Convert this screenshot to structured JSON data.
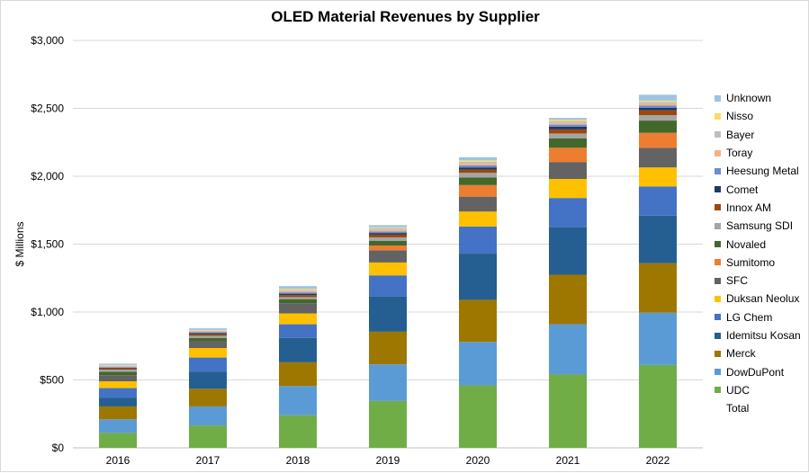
{
  "chart_data": {
    "type": "bar",
    "stacked": true,
    "title": "OLED Material Revenues by Supplier",
    "xlabel": "",
    "ylabel": "$ Millions",
    "ylim": [
      0,
      3000
    ],
    "y_ticks": [
      "$0",
      "$500",
      "$1,000",
      "$1,500",
      "$2,000",
      "$2,500",
      "$3,000"
    ],
    "y_tick_values": [
      0,
      500,
      1000,
      1500,
      2000,
      2500,
      3000
    ],
    "grid": true,
    "legend_position": "right",
    "categories": [
      "2016",
      "2017",
      "2018",
      "2019",
      "2020",
      "2021",
      "2022"
    ],
    "series": [
      {
        "name": "UDC",
        "color": "#70ad47",
        "values": [
          110,
          165,
          240,
          345,
          460,
          540,
          610
        ]
      },
      {
        "name": "DowDuPont",
        "color": "#5b9bd5",
        "values": [
          100,
          140,
          215,
          270,
          320,
          370,
          385
        ]
      },
      {
        "name": "Merck",
        "color": "#9e7700",
        "values": [
          95,
          130,
          175,
          240,
          310,
          365,
          365
        ]
      },
      {
        "name": "Idemitsu Kosan",
        "color": "#255e91",
        "values": [
          65,
          125,
          180,
          260,
          340,
          350,
          350
        ]
      },
      {
        "name": "LG Chem",
        "color": "#4472c4",
        "values": [
          70,
          105,
          100,
          155,
          200,
          215,
          215
        ]
      },
      {
        "name": "Duksan Neolux",
        "color": "#ffc000",
        "values": [
          50,
          70,
          80,
          95,
          110,
          140,
          140
        ]
      },
      {
        "name": "SFC",
        "color": "#636363",
        "values": [
          45,
          50,
          75,
          90,
          110,
          125,
          145
        ]
      },
      {
        "name": "Sumitomo",
        "color": "#ed7d31",
        "values": [
          0,
          0,
          0,
          35,
          85,
          105,
          110
        ]
      },
      {
        "name": "Novaled",
        "color": "#43682b",
        "values": [
          25,
          25,
          30,
          35,
          55,
          70,
          90
        ]
      },
      {
        "name": "Samsung SDI",
        "color": "#a5a5a5",
        "values": [
          15,
          15,
          15,
          25,
          35,
          35,
          40
        ]
      },
      {
        "name": "Innox AM",
        "color": "#9e480e",
        "values": [
          10,
          12,
          15,
          20,
          25,
          30,
          35
        ]
      },
      {
        "name": "Comet",
        "color": "#203864",
        "values": [
          5,
          8,
          10,
          12,
          15,
          20,
          20
        ]
      },
      {
        "name": "Heesung Metal",
        "color": "#698ed0",
        "values": [
          5,
          8,
          10,
          12,
          15,
          15,
          15
        ]
      },
      {
        "name": "Toray",
        "color": "#f4b183",
        "values": [
          5,
          5,
          8,
          10,
          12,
          12,
          12
        ]
      },
      {
        "name": "Bayer",
        "color": "#bfbfbf",
        "values": [
          5,
          5,
          10,
          12,
          15,
          15,
          15
        ]
      },
      {
        "name": "Nisso",
        "color": "#ffd966",
        "values": [
          5,
          5,
          8,
          8,
          10,
          10,
          10
        ]
      },
      {
        "name": "Unknown",
        "color": "#9dc3e6",
        "values": [
          10,
          12,
          20,
          16,
          23,
          13,
          43
        ]
      }
    ],
    "extra_legend_entries": [
      "Total"
    ]
  }
}
